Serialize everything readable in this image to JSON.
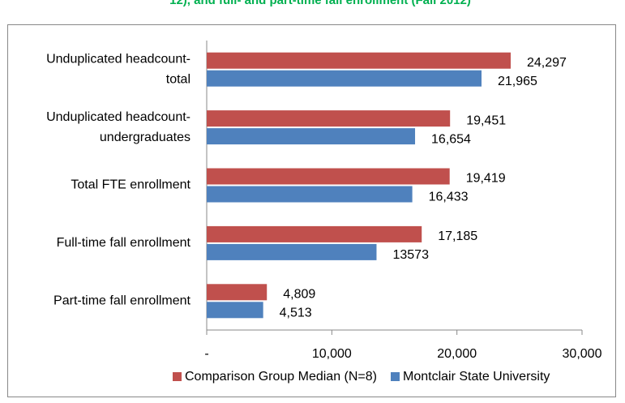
{
  "chart_data": {
    "type": "hbar",
    "title": "12), and full- and part-time fall enrollment (Fall 2012)",
    "categories": [
      [
        "Unduplicated headcount-",
        "total"
      ],
      [
        "Unduplicated headcount-",
        "undergraduates"
      ],
      [
        "Total FTE enrollment"
      ],
      [
        "Full-time fall enrollment"
      ],
      [
        "Part-time fall enrollment"
      ]
    ],
    "series": [
      {
        "name": "Comparison Group Median (N=8)",
        "color": "#c0504d",
        "values": [
          24297,
          19451,
          19419,
          17185,
          4809
        ],
        "value_labels": [
          "24,297",
          "19,451",
          "19,419",
          "17,185",
          "4,809"
        ]
      },
      {
        "name": "Montclair State University",
        "color": "#4f81bd",
        "values": [
          21965,
          16654,
          16433,
          13573,
          4513
        ],
        "value_labels": [
          "21,965",
          "16,654",
          "16,433",
          "13573",
          "4,513"
        ]
      }
    ],
    "xlim": [
      0,
      30000
    ],
    "xticks": [
      {
        "value": 0,
        "label": "-"
      },
      {
        "value": 10000,
        "label": "10,000"
      },
      {
        "value": 20000,
        "label": "20,000"
      },
      {
        "value": 30000,
        "label": "30,000"
      }
    ]
  }
}
